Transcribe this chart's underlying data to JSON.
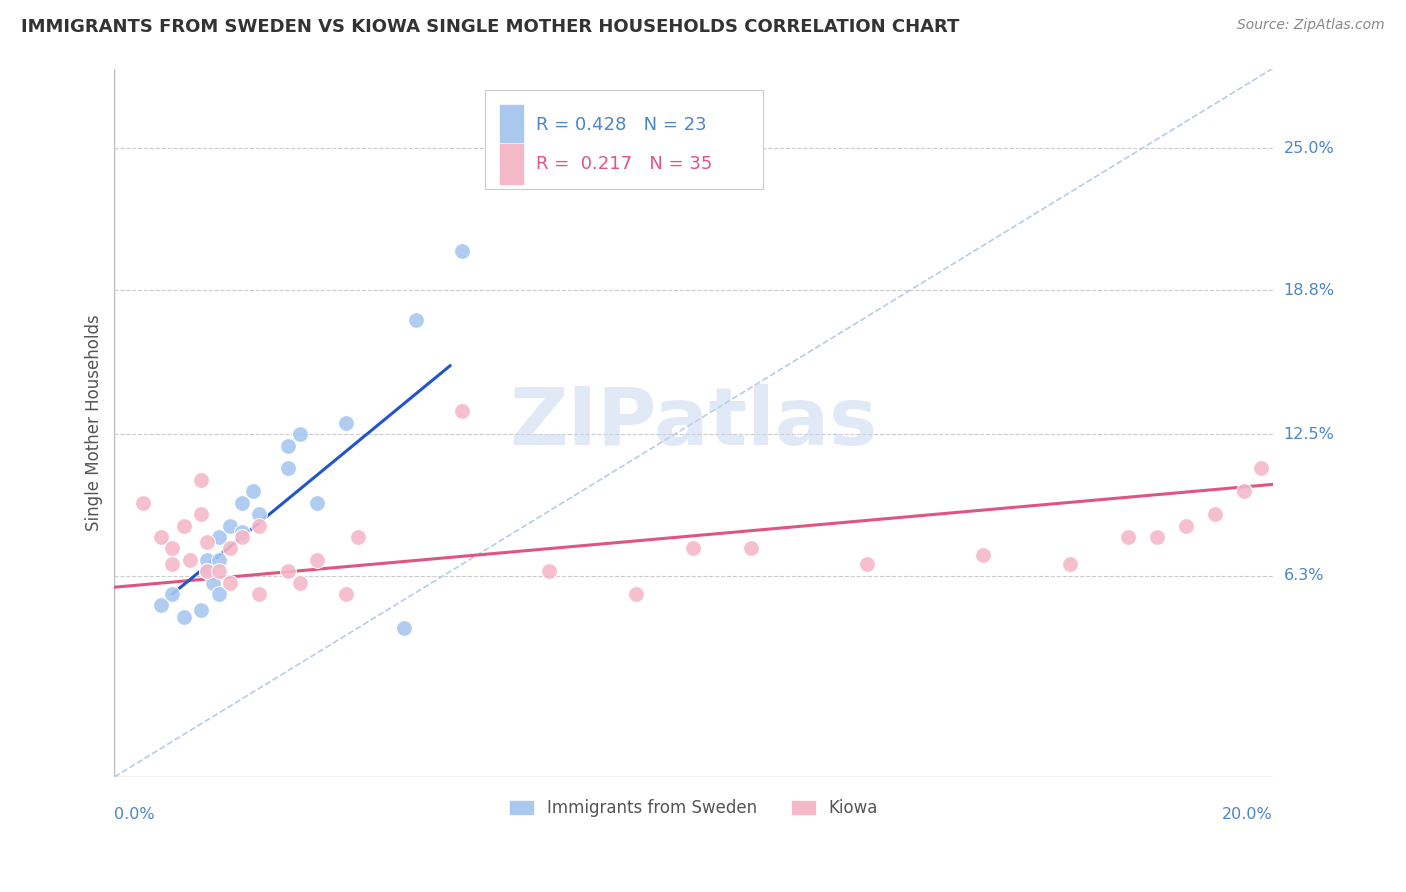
{
  "title": "IMMIGRANTS FROM SWEDEN VS KIOWA SINGLE MOTHER HOUSEHOLDS CORRELATION CHART",
  "source": "Source: ZipAtlas.com",
  "ylabel": "Single Mother Households",
  "ytick_labels": [
    "6.3%",
    "12.5%",
    "18.8%",
    "25.0%"
  ],
  "ytick_values": [
    0.063,
    0.125,
    0.188,
    0.25
  ],
  "xlim": [
    0.0,
    0.2
  ],
  "ylim": [
    -0.025,
    0.285
  ],
  "legend_blue_r": "0.428",
  "legend_blue_n": "23",
  "legend_pink_r": "0.217",
  "legend_pink_n": "35",
  "legend_label_blue": "Immigrants from Sweden",
  "legend_label_pink": "Kiowa",
  "watermark": "ZIPatlas",
  "background_color": "#ffffff",
  "grid_color": "#cccccc",
  "title_color": "#333333",
  "axis_label_color": "#4a86c8",
  "blue_scatter_color": "#a8c8f0",
  "pink_scatter_color": "#f5b8c8",
  "blue_line_color": "#2255cc",
  "pink_line_color": "#e05580",
  "dashed_line_color": "#b8cce4",
  "blue_scatter_x": [
    0.008,
    0.01,
    0.012,
    0.015,
    0.016,
    0.016,
    0.017,
    0.018,
    0.018,
    0.018,
    0.02,
    0.022,
    0.022,
    0.024,
    0.025,
    0.03,
    0.03,
    0.032,
    0.035,
    0.04,
    0.05,
    0.052,
    0.06
  ],
  "blue_scatter_y": [
    0.05,
    0.055,
    0.045,
    0.048,
    0.07,
    0.065,
    0.06,
    0.055,
    0.07,
    0.08,
    0.085,
    0.082,
    0.095,
    0.1,
    0.09,
    0.11,
    0.12,
    0.125,
    0.095,
    0.13,
    0.04,
    0.175,
    0.205
  ],
  "pink_scatter_x": [
    0.005,
    0.008,
    0.01,
    0.01,
    0.012,
    0.013,
    0.015,
    0.015,
    0.016,
    0.016,
    0.018,
    0.02,
    0.02,
    0.022,
    0.025,
    0.025,
    0.03,
    0.032,
    0.035,
    0.04,
    0.042,
    0.06,
    0.075,
    0.09,
    0.1,
    0.11,
    0.13,
    0.15,
    0.165,
    0.175,
    0.18,
    0.185,
    0.19,
    0.195,
    0.198
  ],
  "pink_scatter_y": [
    0.095,
    0.08,
    0.068,
    0.075,
    0.085,
    0.07,
    0.09,
    0.105,
    0.078,
    0.065,
    0.065,
    0.075,
    0.06,
    0.08,
    0.055,
    0.085,
    0.065,
    0.06,
    0.07,
    0.055,
    0.08,
    0.135,
    0.065,
    0.055,
    0.075,
    0.075,
    0.068,
    0.072,
    0.068,
    0.08,
    0.08,
    0.085,
    0.09,
    0.1,
    0.11
  ],
  "blue_line_x": [
    0.01,
    0.058
  ],
  "blue_line_y": [
    0.055,
    0.155
  ],
  "pink_line_x": [
    0.0,
    0.2
  ],
  "pink_line_y": [
    0.058,
    0.103
  ],
  "dashed_line_x": [
    0.0,
    0.2
  ],
  "dashed_line_y": [
    -0.025,
    0.285
  ]
}
